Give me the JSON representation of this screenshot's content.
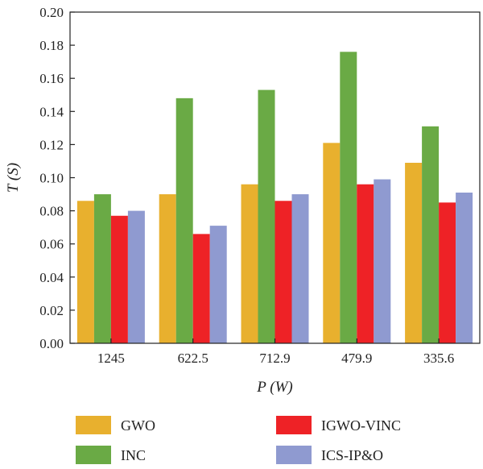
{
  "chart_data": {
    "type": "bar",
    "title": "",
    "xlabel": "P (W)",
    "ylabel": "T (S)",
    "ylim": [
      0,
      0.2
    ],
    "yticks": [
      "0.00",
      "0.02",
      "0.04",
      "0.06",
      "0.08",
      "0.10",
      "0.12",
      "0.14",
      "0.16",
      "0.18",
      "0.20"
    ],
    "categories": [
      "1245",
      "622.5",
      "712.9",
      "479.9",
      "335.6"
    ],
    "series": [
      {
        "name": "GWO",
        "color": "#E8B02E",
        "values": [
          0.086,
          0.09,
          0.096,
          0.121,
          0.109
        ]
      },
      {
        "name": "INC",
        "color": "#6AAA45",
        "values": [
          0.09,
          0.148,
          0.153,
          0.176,
          0.131
        ]
      },
      {
        "name": "IGWO-VINC",
        "color": "#EE2226",
        "values": [
          0.077,
          0.066,
          0.086,
          0.096,
          0.085
        ]
      },
      {
        "name": "ICS-IP&O",
        "color": "#8F9AD0",
        "values": [
          0.08,
          0.071,
          0.09,
          0.099,
          0.091
        ]
      }
    ],
    "grid": false,
    "legend_position": "bottom"
  }
}
